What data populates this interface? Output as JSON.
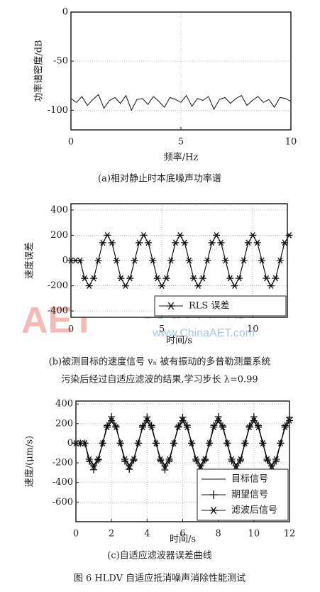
{
  "chart_data": [
    {
      "type": "line",
      "x_label": "频率/Hz",
      "y_label": "功率谱密度/dB",
      "color": "#111111",
      "grid": true,
      "x": [
        0,
        0.25,
        0.5,
        0.75,
        1,
        1.25,
        1.5,
        1.75,
        2,
        2.25,
        2.5,
        2.75,
        3,
        3.25,
        3.5,
        3.75,
        4,
        4.25,
        4.5,
        4.75,
        5,
        5.25,
        5.5,
        5.75,
        6,
        6.25,
        6.5,
        6.75,
        7,
        7.25,
        7.5,
        7.75,
        8,
        8.25,
        8.5,
        8.75,
        9,
        9.25,
        9.5,
        9.75,
        10
      ],
      "values": [
        -88,
        -92,
        -86,
        -95,
        -89,
        -84,
        -98,
        -90,
        -87,
        -93,
        -85,
        -100,
        -89,
        -88,
        -94,
        -86,
        -91,
        -97,
        -87,
        -89,
        -92,
        -85,
        -96,
        -88,
        -90,
        -86,
        -99,
        -89,
        -87,
        -93,
        -88,
        -85,
        -95,
        -90,
        -86,
        -92,
        -89,
        -97,
        -87,
        -88,
        -91
      ],
      "xlim": [
        0,
        10
      ],
      "xticks": [
        0,
        5,
        10
      ],
      "ylim": [
        -120,
        0
      ],
      "yticks": [
        -100,
        -50,
        0
      ]
    },
    {
      "type": "line",
      "x_label": "时间/s",
      "y_label": "速度误差",
      "grid": true,
      "legend": "lower right",
      "x": [
        0,
        0.25,
        0.5,
        0.75,
        1,
        1.25,
        1.5,
        1.75,
        2,
        2.25,
        2.5,
        2.75,
        3,
        3.25,
        3.5,
        3.75,
        4,
        4.25,
        4.5,
        4.75,
        5,
        5.25,
        5.5,
        5.75,
        6,
        6.25,
        6.5,
        6.75,
        7,
        7.25,
        7.5,
        7.75,
        8,
        8.25,
        8.5,
        8.75,
        9,
        9.25,
        9.5,
        9.75,
        10,
        10.25,
        10.5,
        10.75,
        11,
        11.25,
        11.5,
        11.75,
        12
      ],
      "series": [
        {
          "name": "RLS 误差",
          "color": "#111111",
          "marker": "star",
          "values": [
            0,
            0,
            0,
            -141,
            -200,
            -141,
            0,
            141,
            200,
            141,
            0,
            -141,
            -200,
            -141,
            0,
            141,
            200,
            141,
            0,
            -141,
            -200,
            -141,
            0,
            141,
            200,
            141,
            0,
            -141,
            -200,
            -141,
            0,
            141,
            200,
            141,
            0,
            -141,
            -200,
            -141,
            0,
            141,
            200,
            141,
            0,
            -141,
            -200,
            -141,
            0,
            141,
            200
          ]
        }
      ],
      "xlim": [
        0,
        11.9
      ],
      "xticks": [
        0,
        5,
        10
      ],
      "ylim": [
        -450,
        450
      ],
      "yticks": [
        -400,
        -200,
        0,
        200,
        400
      ]
    },
    {
      "type": "line",
      "x_label": "时间/s",
      "y_label": "速度/(μm/s)",
      "grid": true,
      "legend": "lower right",
      "x": [
        0,
        0.25,
        0.5,
        0.75,
        1,
        1.25,
        1.5,
        1.75,
        2,
        2.25,
        2.5,
        2.75,
        3,
        3.25,
        3.5,
        3.75,
        4,
        4.25,
        4.5,
        4.75,
        5,
        5.25,
        5.5,
        5.75,
        6,
        6.25,
        6.5,
        6.75,
        7,
        7.25,
        7.5,
        7.75,
        8,
        8.25,
        8.5,
        8.75,
        9,
        9.25,
        9.5,
        9.75,
        10,
        10.25,
        10.5,
        10.75,
        11,
        11.25,
        11.5,
        11.75,
        12
      ],
      "series": [
        {
          "name": "目标信号",
          "color": "#111111",
          "marker": "none",
          "values": [
            0,
            0,
            0,
            -156,
            -220,
            -156,
            0,
            156,
            220,
            156,
            0,
            -156,
            -220,
            -156,
            0,
            156,
            220,
            156,
            0,
            -156,
            -220,
            -156,
            0,
            156,
            220,
            156,
            0,
            -156,
            -220,
            -156,
            0,
            156,
            220,
            156,
            0,
            -156,
            -220,
            -156,
            0,
            156,
            220,
            156,
            0,
            -156,
            -220,
            -156,
            0,
            156,
            220
          ]
        },
        {
          "name": "期望信号",
          "color": "#111111",
          "marker": "plus",
          "values": [
            0,
            0,
            0,
            -184,
            -270,
            -170,
            0,
            180,
            270,
            176,
            0,
            -182,
            -265,
            -174,
            0,
            178,
            268,
            181,
            0,
            -176,
            -272,
            -180,
            0,
            175,
            266,
            183,
            0,
            -179,
            -269,
            -173,
            0,
            182,
            271,
            177,
            0,
            -181,
            -266,
            -178,
            0,
            176,
            270,
            180,
            0,
            -177,
            -268,
            -182,
            0,
            179,
            265
          ]
        },
        {
          "name": "滤波后信号",
          "color": "#111111",
          "marker": "star",
          "values": [
            0,
            0,
            0,
            -163,
            -230,
            -163,
            0,
            163,
            230,
            163,
            0,
            -163,
            -230,
            -163,
            0,
            163,
            230,
            163,
            0,
            -163,
            -230,
            -163,
            0,
            163,
            230,
            163,
            0,
            -163,
            -230,
            -163,
            0,
            163,
            230,
            163,
            0,
            -163,
            -230,
            -163,
            0,
            163,
            230,
            163,
            0,
            -163,
            -230,
            -163,
            0,
            163,
            230
          ]
        }
      ],
      "xlim": [
        0,
        12
      ],
      "xticks": [
        0,
        2,
        4,
        6,
        8,
        10,
        12
      ],
      "ylim": [
        -800,
        430
      ],
      "yticks": [
        -600,
        -400,
        -200,
        0,
        200,
        400
      ]
    }
  ],
  "captions": [
    "(a)相对静止时本底噪声功率谱",
    "(b)被测目标的速度信号 vₙ 被有振动的多普勒测量系统",
    "污染后经过自适应滤波的结果,学习步长 λ=0.99",
    "(c)自适应滤波器误差曲线",
    "图 6  HLDV 自适应抵消噪声消除性能测试"
  ],
  "watermark": [
    "AET",
    "电子技术应用",
    "www.ChinaAET.com"
  ]
}
